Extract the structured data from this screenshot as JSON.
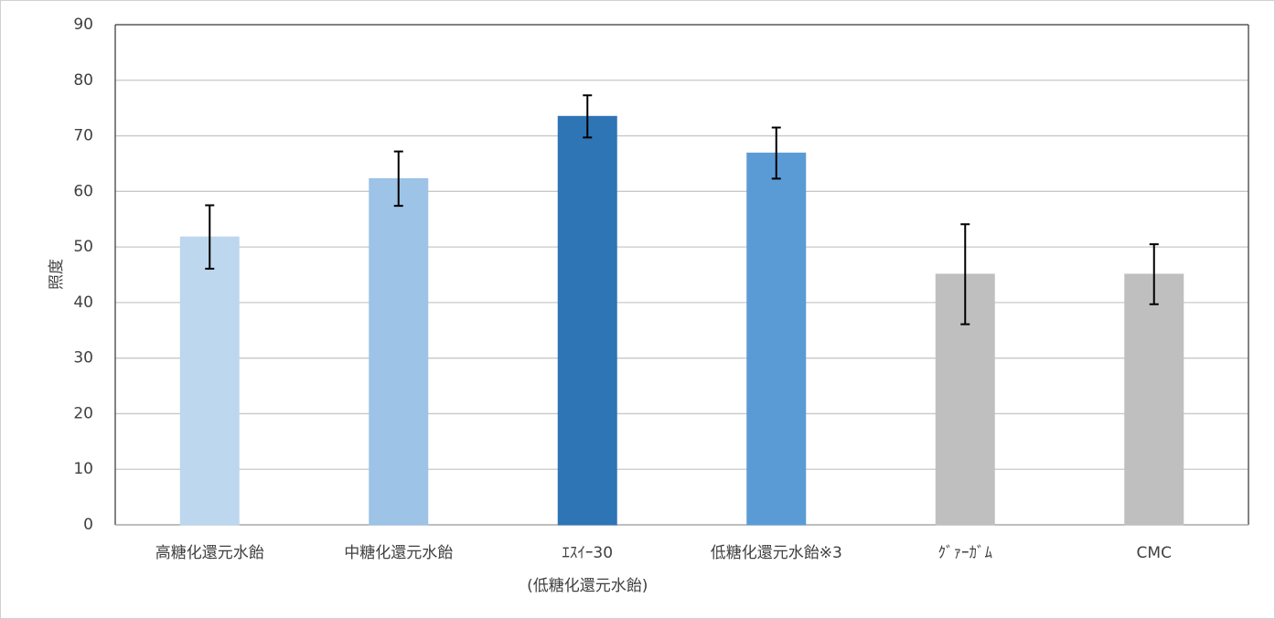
{
  "chart_data": {
    "type": "bar",
    "y_label": "照度",
    "categories": [
      "高糖化還元水飴",
      "中糖化還元水飴",
      [
        "ｴｽｲｰ30",
        "(低糖化還元水飴)"
      ],
      "低糖化還元水飴※3",
      "ｸﾞｧｰｶﾞﾑ",
      "CMC"
    ],
    "values": [
      51.8,
      62.3,
      73.5,
      66.9,
      45.1,
      45.1
    ],
    "errors": [
      5.7,
      4.9,
      3.8,
      4.6,
      9.0,
      5.4
    ],
    "colors": [
      "#bdd7ee",
      "#9dc3e6",
      "#2e75b6",
      "#5b9bd5",
      "#bfbfbf",
      "#bfbfbf"
    ],
    "ylim": [
      0,
      90
    ],
    "yticks": [
      0,
      10,
      20,
      30,
      40,
      50,
      60,
      70,
      80,
      90
    ],
    "grid": true
  }
}
